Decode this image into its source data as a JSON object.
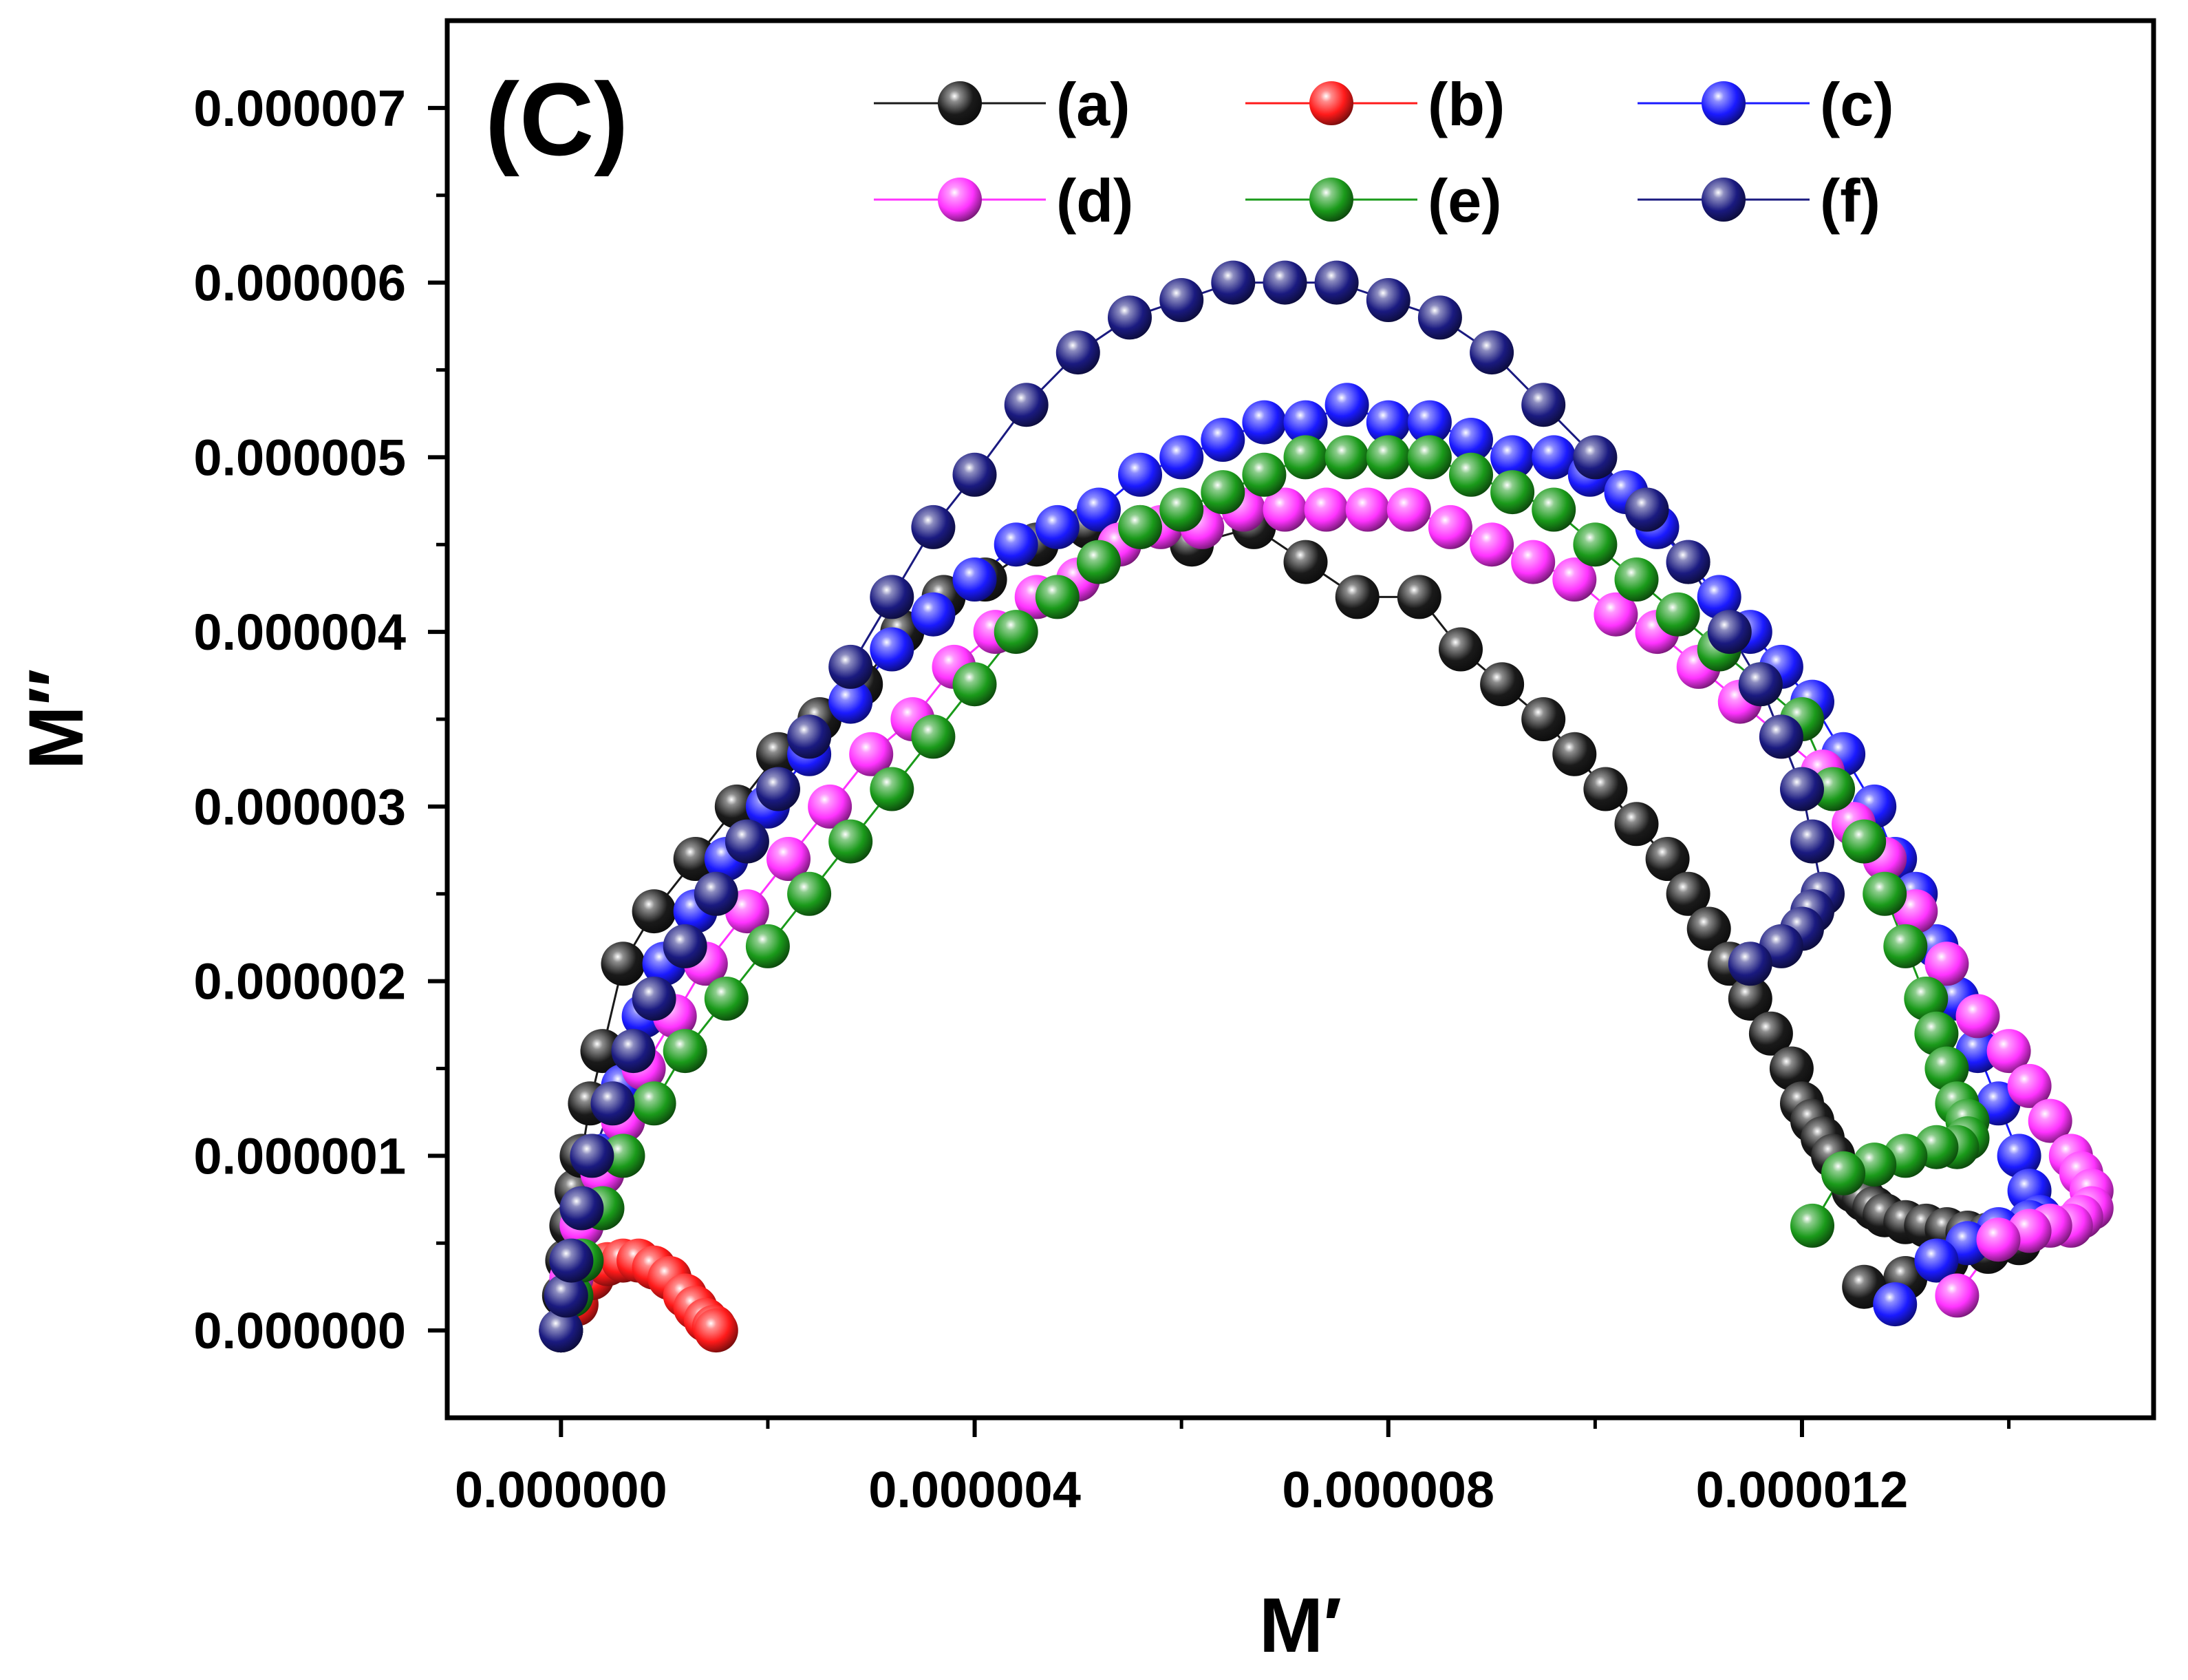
{
  "chart_data": {
    "type": "scatter",
    "panel_label": "(C)",
    "xlabel": "M′",
    "ylabel": "M″",
    "xlim": [
      -1.1e-06,
      1.54e-05
    ],
    "ylim": [
      -5e-07,
      7.5e-06
    ],
    "x_ticks": [
      0,
      4e-06,
      8e-06,
      1.2e-05
    ],
    "x_tick_labels": [
      "0.000000",
      "0.000004",
      "0.000008",
      "0.000012"
    ],
    "y_ticks": [
      0,
      1e-06,
      2e-06,
      3e-06,
      4e-06,
      5e-06,
      6e-06,
      7e-06
    ],
    "y_tick_labels": [
      "0.000000",
      "0.000001",
      "0.000002",
      "0.000003",
      "0.000004",
      "0.000005",
      "0.000006",
      "0.000007"
    ],
    "legend_position": "top",
    "grid": false,
    "series": [
      {
        "name": "(a)",
        "color": "#1a1a1a",
        "x": [
          0,
          3e-08,
          6e-08,
          1e-07,
          1.5e-07,
          2e-07,
          2.8e-07,
          4e-07,
          6e-07,
          9e-07,
          1.3e-06,
          1.7e-06,
          2.1e-06,
          2.5e-06,
          2.9e-06,
          3.3e-06,
          3.7e-06,
          4.1e-06,
          4.6e-06,
          5.1e-06,
          5.6e-06,
          6.1e-06,
          6.7e-06,
          7.2e-06,
          7.7e-06,
          8.3e-06,
          8.7e-06,
          9.1e-06,
          9.5e-06,
          9.8e-06,
          1.01e-05,
          1.04e-05,
          1.07e-05,
          1.09e-05,
          1.11e-05,
          1.13e-05,
          1.15e-05,
          1.17e-05,
          1.19e-05,
          1.2e-05,
          1.21e-05,
          1.22e-05,
          1.23e-05,
          1.24e-05,
          1.25e-05,
          1.26e-05,
          1.27e-05,
          1.28e-05,
          1.3e-05,
          1.32e-05,
          1.34e-05,
          1.36e-05,
          1.38e-05,
          1.4e-05,
          1.41e-05,
          1.38e-05,
          1.34e-05,
          1.3e-05,
          1.26e-05
        ],
        "y": [
          0,
          2e-07,
          4e-07,
          6e-07,
          8e-07,
          1e-06,
          1.3e-06,
          1.6e-06,
          2.1e-06,
          2.4e-06,
          2.7e-06,
          3e-06,
          3.3e-06,
          3.5e-06,
          3.7e-06,
          4e-06,
          4.2e-06,
          4.3e-06,
          4.5e-06,
          4.6e-06,
          4.6e-06,
          4.5e-06,
          4.6e-06,
          4.4e-06,
          4.2e-06,
          4.2e-06,
          3.9e-06,
          3.7e-06,
          3.5e-06,
          3.3e-06,
          3.1e-06,
          2.9e-06,
          2.7e-06,
          2.5e-06,
          2.3e-06,
          2.1e-06,
          1.9e-06,
          1.7e-06,
          1.5e-06,
          1.3e-06,
          1.2e-06,
          1.1e-06,
          1e-06,
          9e-07,
          8e-07,
          7.5e-07,
          7e-07,
          6.6e-07,
          6.2e-07,
          6e-07,
          5.8e-07,
          5.6e-07,
          5.5e-07,
          5.2e-07,
          5e-07,
          4.5e-07,
          4e-07,
          3e-07,
          2.5e-07
        ]
      },
      {
        "name": "(b)",
        "color": "#ff1a1a",
        "x": [
          0,
          1.5e-07,
          3e-07,
          4.5e-07,
          6e-07,
          7.5e-07,
          9e-07,
          1.05e-06,
          1.2e-06,
          1.3e-06,
          1.4e-06,
          1.48e-06,
          1.5e-06
        ],
        "y": [
          0,
          1.5e-07,
          3e-07,
          3.8e-07,
          4e-07,
          4e-07,
          3.6e-07,
          3e-07,
          2e-07,
          1.3e-07,
          6e-08,
          2e-08,
          0
        ]
      },
      {
        "name": "(c)",
        "color": "#1a1aff",
        "x": [
          0,
          1e-07,
          2e-07,
          4e-07,
          6e-07,
          8e-07,
          1e-06,
          1.3e-06,
          1.6e-06,
          2e-06,
          2.4e-06,
          2.8e-06,
          3.2e-06,
          3.6e-06,
          4e-06,
          4.4e-06,
          4.8e-06,
          5.2e-06,
          5.6e-06,
          6e-06,
          6.4e-06,
          6.8e-06,
          7.2e-06,
          7.6e-06,
          8e-06,
          8.4e-06,
          8.8e-06,
          9.2e-06,
          9.6e-06,
          9.95e-06,
          1.03e-05,
          1.06e-05,
          1.09e-05,
          1.12e-05,
          1.15e-05,
          1.18e-05,
          1.21e-05,
          1.24e-05,
          1.27e-05,
          1.29e-05,
          1.31e-05,
          1.33e-05,
          1.35e-05,
          1.37e-05,
          1.39e-05,
          1.41e-05,
          1.42e-05,
          1.43e-05,
          1.43e-05,
          1.42e-05,
          1.39e-05,
          1.36e-05,
          1.33e-05,
          1.29e-05
        ],
        "y": [
          0,
          3e-07,
          6e-07,
          1e-06,
          1.4e-06,
          1.8e-06,
          2.1e-06,
          2.4e-06,
          2.7e-06,
          3e-06,
          3.3e-06,
          3.6e-06,
          3.9e-06,
          4.1e-06,
          4.3e-06,
          4.5e-06,
          4.6e-06,
          4.7e-06,
          4.9e-06,
          5e-06,
          5.1e-06,
          5.2e-06,
          5.2e-06,
          5.3e-06,
          5.2e-06,
          5.2e-06,
          5.1e-06,
          5e-06,
          5e-06,
          4.9e-06,
          4.8e-06,
          4.6e-06,
          4.4e-06,
          4.2e-06,
          4e-06,
          3.8e-06,
          3.6e-06,
          3.3e-06,
          3e-06,
          2.7e-06,
          2.5e-06,
          2.2e-06,
          1.9e-06,
          1.6e-06,
          1.3e-06,
          1e-06,
          8e-07,
          6.5e-07,
          6e-07,
          6.2e-07,
          5.8e-07,
          5e-07,
          4e-07,
          1.5e-07
        ]
      },
      {
        "name": "(d)",
        "color": "#ff33ff",
        "x": [
          0,
          1e-07,
          2e-07,
          4e-07,
          6e-07,
          8e-07,
          1.1e-06,
          1.4e-06,
          1.8e-06,
          2.2e-06,
          2.6e-06,
          3e-06,
          3.4e-06,
          3.8e-06,
          4.2e-06,
          4.6e-06,
          5e-06,
          5.4e-06,
          5.8e-06,
          6.2e-06,
          6.6e-06,
          7e-06,
          7.4e-06,
          7.8e-06,
          8.2e-06,
          8.6e-06,
          9e-06,
          9.4e-06,
          9.8e-06,
          1.02e-05,
          1.06e-05,
          1.1e-05,
          1.14e-05,
          1.18e-05,
          1.22e-05,
          1.25e-05,
          1.28e-05,
          1.31e-05,
          1.34e-05,
          1.37e-05,
          1.4e-05,
          1.42e-05,
          1.44e-05,
          1.46e-05,
          1.47e-05,
          1.48e-05,
          1.48e-05,
          1.47e-05,
          1.46e-05,
          1.44e-05,
          1.42e-05,
          1.39e-05,
          1.35e-05
        ],
        "y": [
          0,
          3e-07,
          6e-07,
          9e-07,
          1.2e-06,
          1.5e-06,
          1.8e-06,
          2.1e-06,
          2.4e-06,
          2.7e-06,
          3e-06,
          3.3e-06,
          3.5e-06,
          3.8e-06,
          4e-06,
          4.2e-06,
          4.3e-06,
          4.5e-06,
          4.6e-06,
          4.6e-06,
          4.7e-06,
          4.7e-06,
          4.7e-06,
          4.7e-06,
          4.7e-06,
          4.6e-06,
          4.5e-06,
          4.4e-06,
          4.3e-06,
          4.1e-06,
          4e-06,
          3.8e-06,
          3.6e-06,
          3.4e-06,
          3.2e-06,
          2.9e-06,
          2.7e-06,
          2.4e-06,
          2.1e-06,
          1.8e-06,
          1.6e-06,
          1.4e-06,
          1.2e-06,
          1e-06,
          9e-07,
          8e-07,
          7e-07,
          6.5e-07,
          6e-07,
          6e-07,
          5.7e-07,
          5.2e-07,
          2e-07
        ]
      },
      {
        "name": "(e)",
        "color": "#1a9a1a",
        "x": [
          0,
          1e-07,
          2e-07,
          4e-07,
          6e-07,
          9e-07,
          1.2e-06,
          1.6e-06,
          2e-06,
          2.4e-06,
          2.8e-06,
          3.2e-06,
          3.6e-06,
          4e-06,
          4.4e-06,
          4.8e-06,
          5.2e-06,
          5.6e-06,
          6e-06,
          6.4e-06,
          6.8e-06,
          7.2e-06,
          7.6e-06,
          8e-06,
          8.4e-06,
          8.8e-06,
          9.2e-06,
          9.6e-06,
          1e-05,
          1.04e-05,
          1.08e-05,
          1.12e-05,
          1.16e-05,
          1.2e-05,
          1.23e-05,
          1.26e-05,
          1.28e-05,
          1.3e-05,
          1.32e-05,
          1.33e-05,
          1.34e-05,
          1.35e-05,
          1.36e-05,
          1.36e-05,
          1.35e-05,
          1.33e-05,
          1.3e-05,
          1.27e-05,
          1.24e-05,
          1.21e-05
        ],
        "y": [
          0,
          2e-07,
          4e-07,
          7e-07,
          1e-06,
          1.3e-06,
          1.6e-06,
          1.9e-06,
          2.2e-06,
          2.5e-06,
          2.8e-06,
          3.1e-06,
          3.4e-06,
          3.7e-06,
          4e-06,
          4.2e-06,
          4.4e-06,
          4.6e-06,
          4.7e-06,
          4.8e-06,
          4.9e-06,
          5e-06,
          5e-06,
          5e-06,
          5e-06,
          4.9e-06,
          4.8e-06,
          4.7e-06,
          4.5e-06,
          4.3e-06,
          4.1e-06,
          3.9e-06,
          3.7e-06,
          3.5e-06,
          3.1e-06,
          2.8e-06,
          2.5e-06,
          2.2e-06,
          1.9e-06,
          1.7e-06,
          1.5e-06,
          1.3e-06,
          1.2e-06,
          1.1e-06,
          1.05e-06,
          1.05e-06,
          1e-06,
          9.5e-07,
          9e-07,
          6e-07
        ]
      },
      {
        "name": "(f)",
        "color": "#1a1a80",
        "x": [
          0,
          5e-08,
          1e-07,
          2e-07,
          3e-07,
          5e-07,
          7e-07,
          9e-07,
          1.2e-06,
          1.5e-06,
          1.8e-06,
          2.1e-06,
          2.4e-06,
          2.8e-06,
          3.2e-06,
          3.6e-06,
          4e-06,
          4.5e-06,
          5e-06,
          5.5e-06,
          6e-06,
          6.5e-06,
          7e-06,
          7.5e-06,
          8e-06,
          8.5e-06,
          9e-06,
          9.5e-06,
          1e-05,
          1.05e-05,
          1.09e-05,
          1.13e-05,
          1.16e-05,
          1.18e-05,
          1.2e-05,
          1.21e-05,
          1.22e-05,
          1.21e-05,
          1.2e-05,
          1.18e-05,
          1.15e-05
        ],
        "y": [
          0,
          2e-07,
          4e-07,
          7e-07,
          1e-06,
          1.3e-06,
          1.6e-06,
          1.9e-06,
          2.2e-06,
          2.5e-06,
          2.8e-06,
          3.1e-06,
          3.4e-06,
          3.8e-06,
          4.2e-06,
          4.6e-06,
          4.9e-06,
          5.3e-06,
          5.6e-06,
          5.8e-06,
          5.9e-06,
          6e-06,
          6e-06,
          6e-06,
          5.9e-06,
          5.8e-06,
          5.6e-06,
          5.3e-06,
          5e-06,
          4.7e-06,
          4.4e-06,
          4e-06,
          3.7e-06,
          3.4e-06,
          3.1e-06,
          2.8e-06,
          2.5e-06,
          2.4e-06,
          2.3e-06,
          2.2e-06,
          2.1e-06
        ]
      }
    ]
  }
}
